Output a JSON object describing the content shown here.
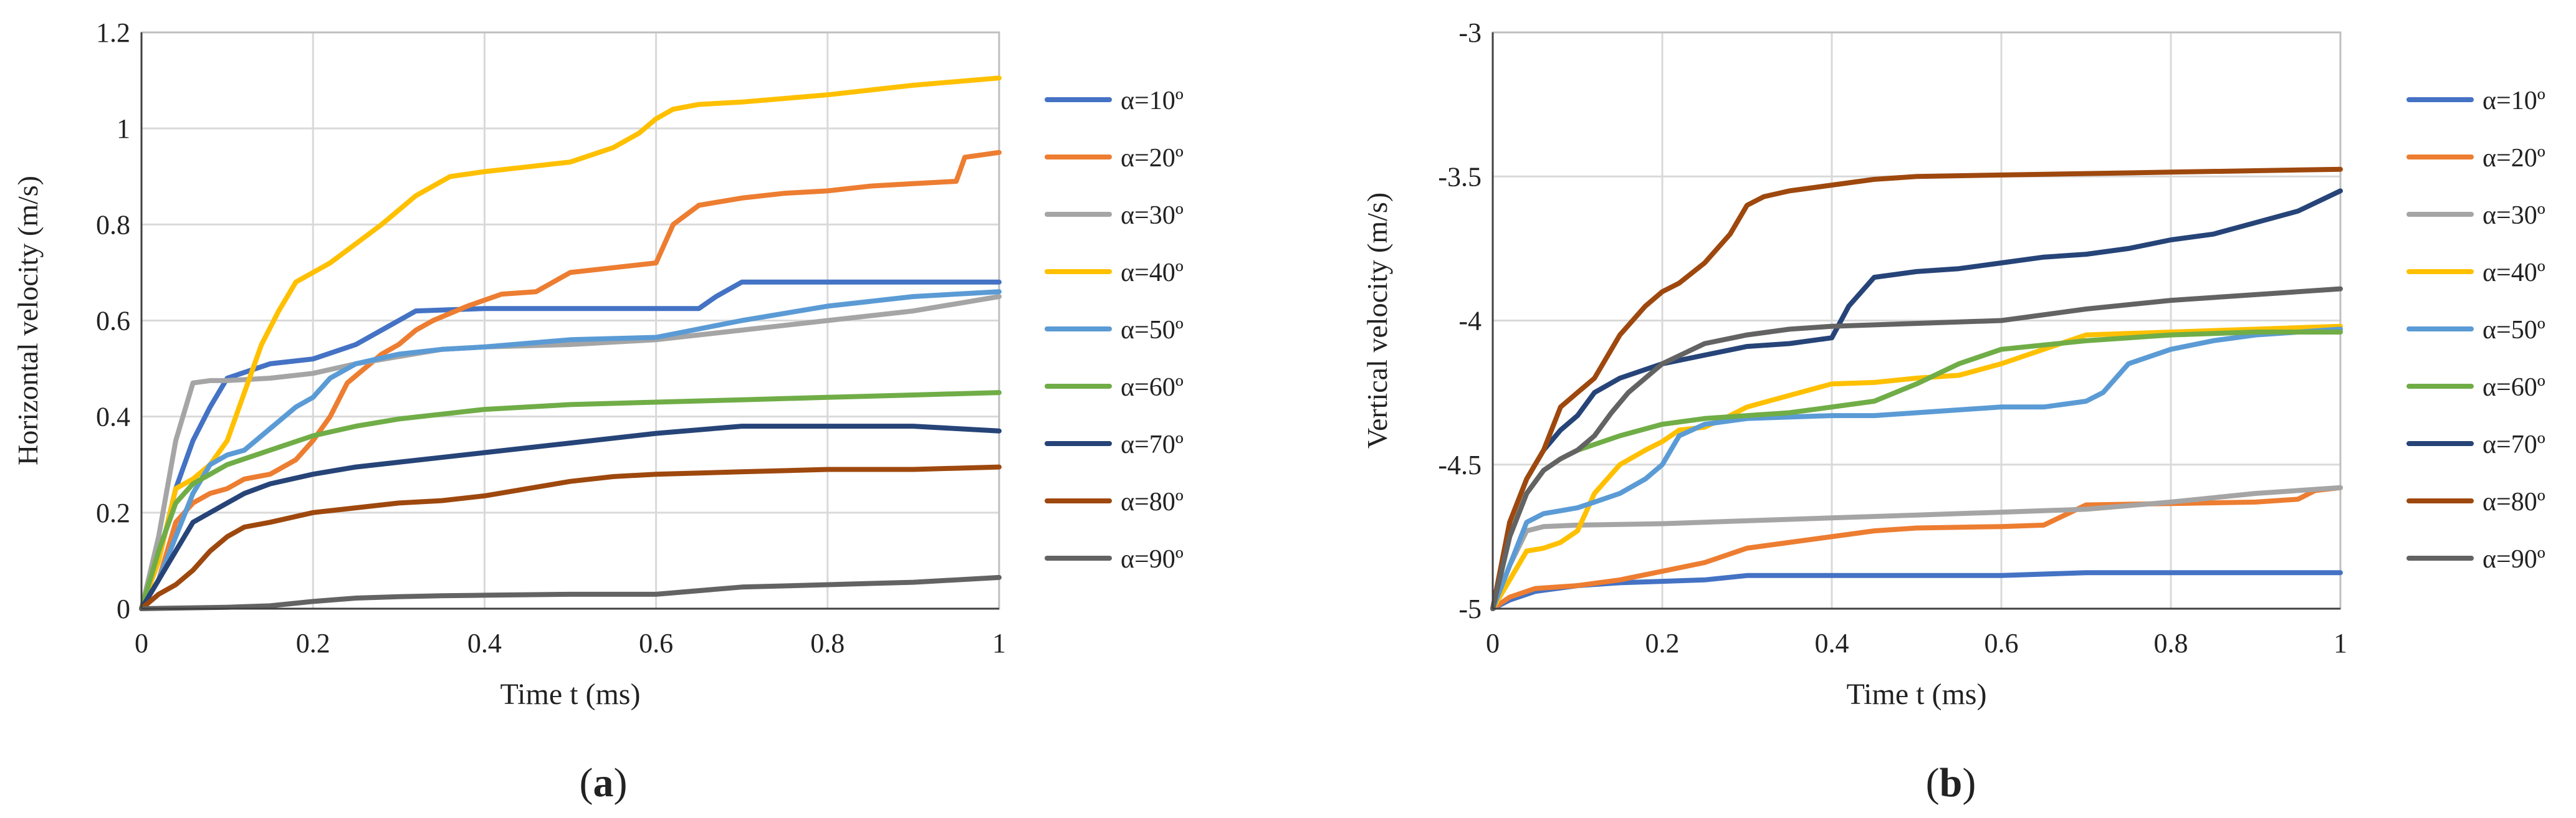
{
  "chart_data": [
    {
      "type": "line",
      "panel_label": "(a)",
      "panel_letter": "a",
      "title": "",
      "xlabel": "Time t (ms)",
      "ylabel": "Horizontal velocity (m/s)",
      "xlim": [
        0,
        1
      ],
      "ylim": [
        0,
        1.2
      ],
      "xticks": [
        0,
        0.2,
        0.4,
        0.6,
        0.8,
        1
      ],
      "xtick_labels": [
        "0",
        "0.2",
        "0.4",
        "0.6",
        "0.8",
        "1"
      ],
      "yticks": [
        0,
        0.2,
        0.4,
        0.6,
        0.8,
        1,
        1.2
      ],
      "ytick_labels": [
        "0",
        "0.2",
        "0.4",
        "0.6",
        "0.8",
        "1",
        "1.2"
      ],
      "grid": true,
      "legend_position": "right",
      "series": [
        {
          "name": "α=10º",
          "color": "#4472C4",
          "x": [
            0,
            0.02,
            0.04,
            0.06,
            0.08,
            0.1,
            0.15,
            0.2,
            0.25,
            0.3,
            0.32,
            0.4,
            0.5,
            0.6,
            0.65,
            0.67,
            0.7,
            0.8,
            0.9,
            1.0
          ],
          "y": [
            0,
            0.1,
            0.25,
            0.35,
            0.42,
            0.48,
            0.51,
            0.52,
            0.55,
            0.6,
            0.62,
            0.625,
            0.625,
            0.625,
            0.625,
            0.65,
            0.68,
            0.68,
            0.68,
            0.68
          ]
        },
        {
          "name": "α=20º",
          "color": "#ED7D31",
          "x": [
            0,
            0.02,
            0.04,
            0.06,
            0.08,
            0.1,
            0.12,
            0.15,
            0.18,
            0.2,
            0.22,
            0.24,
            0.26,
            0.28,
            0.3,
            0.32,
            0.34,
            0.38,
            0.42,
            0.46,
            0.5,
            0.55,
            0.6,
            0.62,
            0.65,
            0.7,
            0.75,
            0.8,
            0.85,
            0.9,
            0.95,
            0.96,
            1.0
          ],
          "y": [
            0,
            0.06,
            0.18,
            0.22,
            0.24,
            0.25,
            0.27,
            0.28,
            0.31,
            0.35,
            0.4,
            0.47,
            0.5,
            0.53,
            0.55,
            0.58,
            0.6,
            0.63,
            0.655,
            0.66,
            0.7,
            0.71,
            0.72,
            0.8,
            0.84,
            0.855,
            0.865,
            0.87,
            0.88,
            0.885,
            0.89,
            0.94,
            0.95
          ]
        },
        {
          "name": "α=30º",
          "color": "#A5A5A5",
          "x": [
            0,
            0.02,
            0.04,
            0.06,
            0.08,
            0.1,
            0.15,
            0.2,
            0.25,
            0.3,
            0.35,
            0.4,
            0.5,
            0.6,
            0.7,
            0.8,
            0.9,
            1.0
          ],
          "y": [
            0,
            0.15,
            0.35,
            0.47,
            0.475,
            0.475,
            0.48,
            0.49,
            0.51,
            0.525,
            0.54,
            0.545,
            0.55,
            0.56,
            0.58,
            0.6,
            0.62,
            0.65
          ]
        },
        {
          "name": "α=40º",
          "color": "#FFC000",
          "x": [
            0,
            0.02,
            0.04,
            0.06,
            0.08,
            0.1,
            0.12,
            0.14,
            0.16,
            0.18,
            0.2,
            0.22,
            0.25,
            0.28,
            0.3,
            0.32,
            0.34,
            0.36,
            0.4,
            0.45,
            0.5,
            0.55,
            0.58,
            0.6,
            0.62,
            0.65,
            0.7,
            0.8,
            0.9,
            1.0
          ],
          "y": [
            0,
            0.1,
            0.25,
            0.27,
            0.3,
            0.35,
            0.45,
            0.55,
            0.62,
            0.68,
            0.7,
            0.72,
            0.76,
            0.8,
            0.83,
            0.86,
            0.88,
            0.9,
            0.91,
            0.92,
            0.93,
            0.96,
            0.99,
            1.02,
            1.04,
            1.05,
            1.055,
            1.07,
            1.09,
            1.105
          ]
        },
        {
          "name": "α=50º",
          "color": "#5B9BD5",
          "x": [
            0,
            0.02,
            0.04,
            0.06,
            0.08,
            0.1,
            0.12,
            0.14,
            0.16,
            0.18,
            0.2,
            0.22,
            0.25,
            0.3,
            0.35,
            0.4,
            0.5,
            0.6,
            0.7,
            0.8,
            0.9,
            1.0
          ],
          "y": [
            0,
            0.06,
            0.15,
            0.24,
            0.3,
            0.32,
            0.33,
            0.36,
            0.39,
            0.42,
            0.44,
            0.48,
            0.51,
            0.53,
            0.54,
            0.545,
            0.56,
            0.565,
            0.6,
            0.63,
            0.65,
            0.66
          ]
        },
        {
          "name": "α=60º",
          "color": "#70AD47",
          "x": [
            0,
            0.02,
            0.04,
            0.06,
            0.08,
            0.1,
            0.15,
            0.2,
            0.25,
            0.3,
            0.35,
            0.4,
            0.45,
            0.5,
            0.6,
            0.7,
            0.8,
            0.9,
            1.0
          ],
          "y": [
            0,
            0.12,
            0.22,
            0.26,
            0.28,
            0.3,
            0.33,
            0.36,
            0.38,
            0.395,
            0.405,
            0.415,
            0.42,
            0.425,
            0.43,
            0.435,
            0.44,
            0.445,
            0.45
          ]
        },
        {
          "name": "α=70º",
          "color": "#264478",
          "x": [
            0,
            0.02,
            0.04,
            0.06,
            0.08,
            0.1,
            0.12,
            0.15,
            0.2,
            0.25,
            0.3,
            0.35,
            0.4,
            0.5,
            0.6,
            0.7,
            0.8,
            0.9,
            1.0
          ],
          "y": [
            0,
            0.06,
            0.12,
            0.18,
            0.2,
            0.22,
            0.24,
            0.26,
            0.28,
            0.295,
            0.305,
            0.315,
            0.325,
            0.345,
            0.365,
            0.38,
            0.38,
            0.38,
            0.37
          ]
        },
        {
          "name": "α=80º",
          "color": "#9E480E",
          "x": [
            0,
            0.02,
            0.04,
            0.06,
            0.08,
            0.1,
            0.12,
            0.15,
            0.2,
            0.25,
            0.3,
            0.35,
            0.4,
            0.45,
            0.5,
            0.55,
            0.6,
            0.7,
            0.8,
            0.9,
            1.0
          ],
          "y": [
            0,
            0.03,
            0.05,
            0.08,
            0.12,
            0.15,
            0.17,
            0.18,
            0.2,
            0.21,
            0.22,
            0.225,
            0.235,
            0.25,
            0.265,
            0.275,
            0.28,
            0.285,
            0.29,
            0.29,
            0.295
          ]
        },
        {
          "name": "α=90º",
          "color": "#636363",
          "x": [
            0,
            0.1,
            0.15,
            0.2,
            0.25,
            0.3,
            0.35,
            0.4,
            0.5,
            0.6,
            0.7,
            0.8,
            0.9,
            1.0
          ],
          "y": [
            0,
            0.003,
            0.006,
            0.015,
            0.022,
            0.025,
            0.027,
            0.028,
            0.03,
            0.03,
            0.045,
            0.05,
            0.055,
            0.065
          ]
        }
      ]
    },
    {
      "type": "line",
      "panel_label": "(b)",
      "panel_letter": "b",
      "title": "",
      "xlabel": "Time t (ms)",
      "ylabel": "Vertical velocity (m/s)",
      "xlim": [
        0,
        1
      ],
      "ylim": [
        -5,
        -3
      ],
      "xticks": [
        0,
        0.2,
        0.4,
        0.6,
        0.8,
        1
      ],
      "xtick_labels": [
        "0",
        "0.2",
        "0.4",
        "0.6",
        "0.8",
        "1"
      ],
      "yticks": [
        -5,
        -4.5,
        -4,
        -3.5,
        -3
      ],
      "ytick_labels": [
        "-5",
        "-4.5",
        "-4",
        "-3.5",
        "-3"
      ],
      "grid": true,
      "legend_position": "right",
      "series": [
        {
          "name": "α=10º",
          "color": "#4472C4",
          "x": [
            0,
            0.02,
            0.05,
            0.1,
            0.15,
            0.2,
            0.25,
            0.3,
            0.4,
            0.5,
            0.6,
            0.7,
            0.8,
            0.9,
            1.0
          ],
          "y": [
            -5,
            -4.97,
            -4.94,
            -4.92,
            -4.91,
            -4.905,
            -4.9,
            -4.885,
            -4.885,
            -4.885,
            -4.885,
            -4.875,
            -4.875,
            -4.875,
            -4.875
          ]
        },
        {
          "name": "α=20º",
          "color": "#ED7D31",
          "x": [
            0,
            0.02,
            0.05,
            0.1,
            0.15,
            0.2,
            0.25,
            0.3,
            0.35,
            0.4,
            0.45,
            0.5,
            0.6,
            0.65,
            0.7,
            0.8,
            0.9,
            0.95,
            0.97,
            1.0
          ],
          "y": [
            -5,
            -4.96,
            -4.93,
            -4.92,
            -4.9,
            -4.87,
            -4.84,
            -4.79,
            -4.77,
            -4.75,
            -4.73,
            -4.72,
            -4.715,
            -4.71,
            -4.64,
            -4.635,
            -4.63,
            -4.62,
            -4.59,
            -4.58
          ]
        },
        {
          "name": "α=30º",
          "color": "#A5A5A5",
          "x": [
            0,
            0.02,
            0.04,
            0.06,
            0.1,
            0.2,
            0.3,
            0.4,
            0.5,
            0.6,
            0.7,
            0.8,
            0.9,
            1.0
          ],
          "y": [
            -5,
            -4.85,
            -4.73,
            -4.715,
            -4.71,
            -4.705,
            -4.695,
            -4.685,
            -4.675,
            -4.665,
            -4.655,
            -4.63,
            -4.6,
            -4.58
          ]
        },
        {
          "name": "α=40º",
          "color": "#FFC000",
          "x": [
            0,
            0.02,
            0.04,
            0.06,
            0.08,
            0.1,
            0.12,
            0.15,
            0.18,
            0.2,
            0.22,
            0.25,
            0.28,
            0.3,
            0.35,
            0.4,
            0.45,
            0.5,
            0.55,
            0.6,
            0.65,
            0.7,
            0.8,
            0.9,
            1.0
          ],
          "y": [
            -5,
            -4.9,
            -4.8,
            -4.79,
            -4.77,
            -4.73,
            -4.6,
            -4.5,
            -4.45,
            -4.42,
            -4.38,
            -4.37,
            -4.33,
            -4.3,
            -4.26,
            -4.22,
            -4.215,
            -4.2,
            -4.19,
            -4.15,
            -4.1,
            -4.05,
            -4.04,
            -4.03,
            -4.02
          ]
        },
        {
          "name": "α=50º",
          "color": "#5B9BD5",
          "x": [
            0,
            0.02,
            0.04,
            0.06,
            0.08,
            0.1,
            0.12,
            0.15,
            0.18,
            0.2,
            0.22,
            0.25,
            0.3,
            0.35,
            0.4,
            0.45,
            0.5,
            0.55,
            0.6,
            0.65,
            0.7,
            0.72,
            0.75,
            0.8,
            0.85,
            0.9,
            0.95,
            1.0
          ],
          "y": [
            -5,
            -4.85,
            -4.7,
            -4.67,
            -4.66,
            -4.65,
            -4.63,
            -4.6,
            -4.55,
            -4.5,
            -4.4,
            -4.36,
            -4.34,
            -4.335,
            -4.33,
            -4.33,
            -4.32,
            -4.31,
            -4.3,
            -4.3,
            -4.28,
            -4.25,
            -4.15,
            -4.1,
            -4.07,
            -4.05,
            -4.04,
            -4.03
          ]
        },
        {
          "name": "α=60º",
          "color": "#70AD47",
          "x": [
            0,
            0.02,
            0.04,
            0.06,
            0.08,
            0.1,
            0.15,
            0.2,
            0.25,
            0.3,
            0.35,
            0.4,
            0.45,
            0.5,
            0.55,
            0.6,
            0.7,
            0.8,
            0.9,
            1.0
          ],
          "y": [
            -5,
            -4.75,
            -4.6,
            -4.52,
            -4.48,
            -4.45,
            -4.4,
            -4.36,
            -4.34,
            -4.33,
            -4.32,
            -4.3,
            -4.28,
            -4.22,
            -4.15,
            -4.1,
            -4.07,
            -4.05,
            -4.04,
            -4.04
          ]
        },
        {
          "name": "α=70º",
          "color": "#264478",
          "x": [
            0,
            0.02,
            0.04,
            0.06,
            0.08,
            0.1,
            0.12,
            0.15,
            0.2,
            0.25,
            0.3,
            0.35,
            0.4,
            0.42,
            0.45,
            0.5,
            0.55,
            0.6,
            0.65,
            0.7,
            0.75,
            0.8,
            0.85,
            0.9,
            0.95,
            1.0
          ],
          "y": [
            -5,
            -4.7,
            -4.55,
            -4.45,
            -4.38,
            -4.33,
            -4.25,
            -4.2,
            -4.15,
            -4.12,
            -4.09,
            -4.08,
            -4.06,
            -3.95,
            -3.85,
            -3.83,
            -3.82,
            -3.8,
            -3.78,
            -3.77,
            -3.75,
            -3.72,
            -3.7,
            -3.66,
            -3.62,
            -3.55
          ]
        },
        {
          "name": "α=80º",
          "color": "#9E480E",
          "x": [
            0,
            0.02,
            0.04,
            0.06,
            0.08,
            0.1,
            0.12,
            0.15,
            0.18,
            0.2,
            0.22,
            0.25,
            0.28,
            0.3,
            0.32,
            0.35,
            0.4,
            0.45,
            0.5,
            0.6,
            0.7,
            0.8,
            0.9,
            1.0
          ],
          "y": [
            -5,
            -4.7,
            -4.55,
            -4.45,
            -4.3,
            -4.25,
            -4.2,
            -4.05,
            -3.95,
            -3.9,
            -3.87,
            -3.8,
            -3.7,
            -3.6,
            -3.57,
            -3.55,
            -3.53,
            -3.51,
            -3.5,
            -3.495,
            -3.49,
            -3.485,
            -3.48,
            -3.475
          ]
        },
        {
          "name": "α=90º",
          "color": "#636363",
          "x": [
            0,
            0.02,
            0.04,
            0.06,
            0.08,
            0.1,
            0.12,
            0.14,
            0.16,
            0.2,
            0.25,
            0.3,
            0.35,
            0.4,
            0.5,
            0.6,
            0.7,
            0.8,
            0.9,
            1.0
          ],
          "y": [
            -5,
            -4.75,
            -4.6,
            -4.52,
            -4.48,
            -4.45,
            -4.4,
            -4.32,
            -4.25,
            -4.15,
            -4.08,
            -4.05,
            -4.03,
            -4.02,
            -4.01,
            -4.0,
            -3.96,
            -3.93,
            -3.91,
            -3.89
          ]
        }
      ]
    }
  ]
}
